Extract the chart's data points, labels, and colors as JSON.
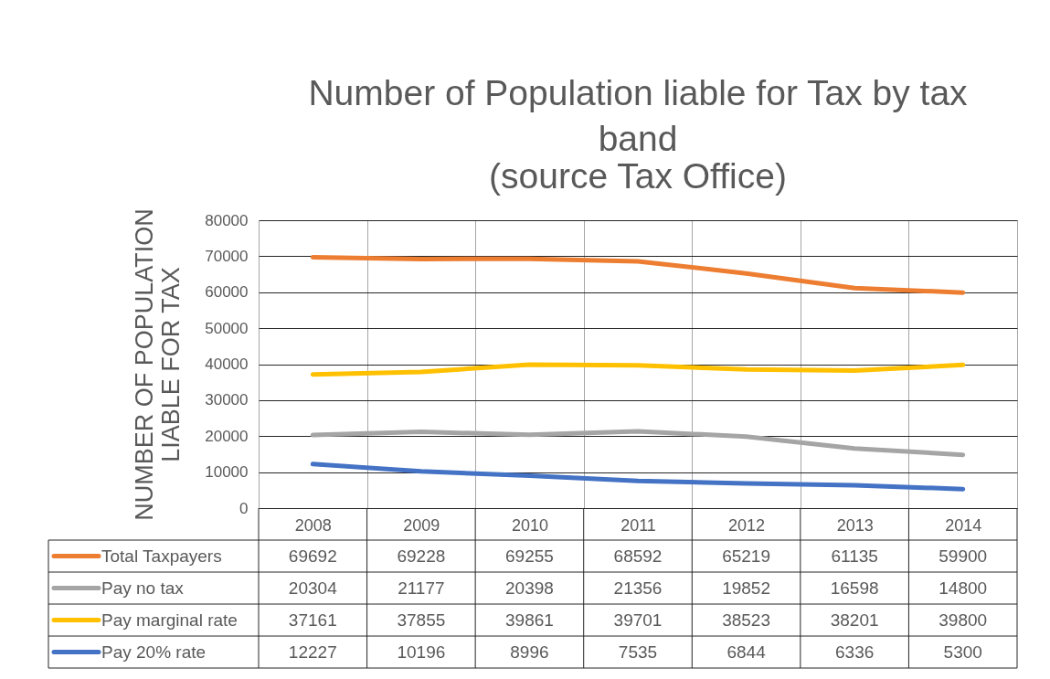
{
  "chart_data": {
    "type": "line",
    "title": "Number of Population liable for Tax by tax band",
    "subtitle": "(source Tax Office)",
    "ylabel": "NUMBER OF POPULATION LIABLE FOR TAX",
    "categories": [
      "2008",
      "2009",
      "2010",
      "2011",
      "2012",
      "2013",
      "2014"
    ],
    "series": [
      {
        "name": "Total Taxpayers",
        "color": "#ed7d31",
        "values": [
          69692,
          69228,
          69255,
          68592,
          65219,
          61135,
          59900
        ]
      },
      {
        "name": "Pay no tax",
        "color": "#a5a5a5",
        "values": [
          20304,
          21177,
          20398,
          21356,
          19852,
          16598,
          14800
        ]
      },
      {
        "name": "Pay marginal rate",
        "color": "#ffc000",
        "values": [
          37161,
          37855,
          39861,
          39701,
          38523,
          38201,
          39800
        ]
      },
      {
        "name": "Pay 20% rate",
        "color": "#4472c4",
        "values": [
          12227,
          10196,
          8996,
          7535,
          6844,
          6336,
          5300
        ]
      }
    ],
    "ylim": [
      0,
      80000
    ],
    "yticks": [
      0,
      10000,
      20000,
      30000,
      40000,
      50000,
      60000,
      70000,
      80000
    ],
    "grid": true,
    "legend": "bottom",
    "data_labels": true,
    "marker": "none"
  }
}
